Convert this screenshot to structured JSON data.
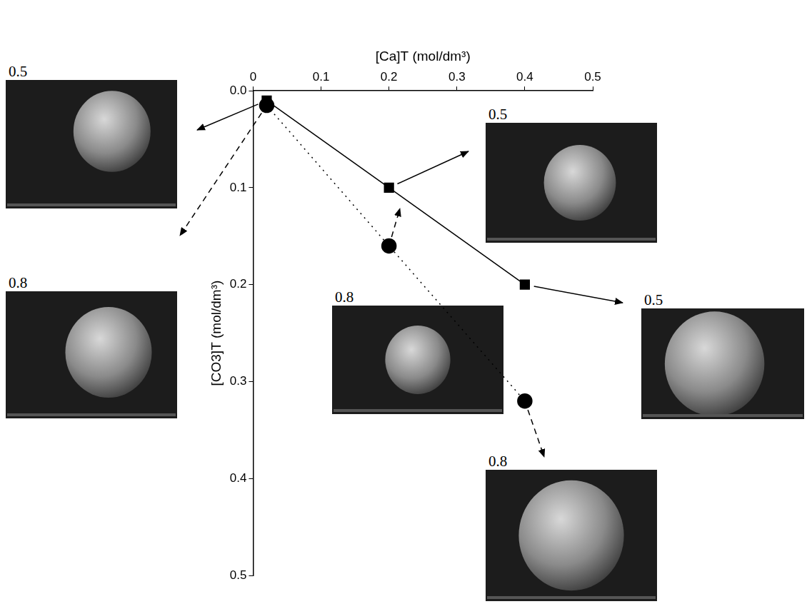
{
  "chart_data": {
    "type": "scatter",
    "x_label": "[Ca]T (mol/dm³)",
    "y_label": "[CO3]T (mol/dm³)",
    "xlim": [
      0,
      0.5
    ],
    "xticks": [
      0,
      0.1,
      0.2,
      0.3,
      0.4,
      0.5
    ],
    "ylim": [
      0,
      0.5
    ],
    "yticks": [
      {
        "value": 0,
        "label": "0.0"
      },
      0.1,
      0.2,
      0.3,
      0.4,
      0.5
    ],
    "grid": false,
    "series": [
      {
        "color": "#000000",
        "marker": "square",
        "line_style": "solid",
        "x": [
          0.02,
          0.2,
          0.4
        ],
        "values": [
          0.01,
          0.1,
          0.2
        ]
      },
      {
        "color": "#000000",
        "marker": "circle",
        "line_style": "dotted",
        "x": [
          0.02,
          0.2,
          0.4
        ],
        "values": [
          0.015,
          0.16,
          0.32
        ]
      }
    ],
    "insets": [
      {
        "label": "0.5"
      },
      {
        "label": "0.8"
      },
      {
        "label": "0.5"
      },
      {
        "label": "0.8"
      },
      {
        "label": "0.5"
      },
      {
        "label": "0.8"
      }
    ]
  }
}
